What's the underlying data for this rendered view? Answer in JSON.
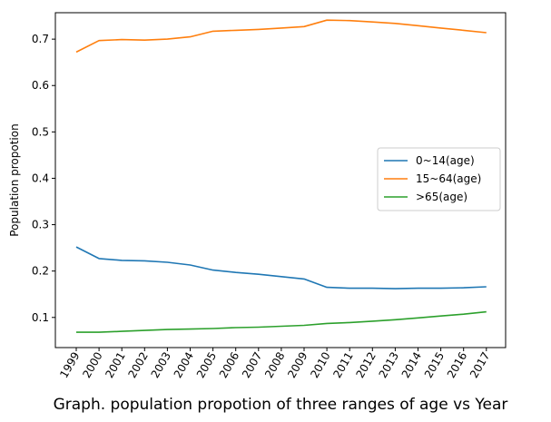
{
  "chart_data": {
    "type": "line",
    "title": "",
    "xlabel": "Graph. population propotion of three ranges of age vs Year",
    "ylabel": "Population propotion",
    "x": [
      "1999",
      "2000",
      "2001",
      "2002",
      "2003",
      "2004",
      "2005",
      "2006",
      "2007",
      "2008",
      "2009",
      "2010",
      "2011",
      "2012",
      "2013",
      "2014",
      "2015",
      "2016",
      "2017"
    ],
    "ylim": [
      0.035,
      0.757
    ],
    "yticks": [
      0.1,
      0.2,
      0.3,
      0.4,
      0.5,
      0.6,
      0.7
    ],
    "ytick_labels": [
      "0.1",
      "0.2",
      "0.3",
      "0.4",
      "0.5",
      "0.6",
      "0.7"
    ],
    "grid": false,
    "legend_position": "center-right",
    "series": [
      {
        "name": "0~14(age)",
        "color": "#1f77b4",
        "values": [
          0.252,
          0.227,
          0.223,
          0.222,
          0.219,
          0.213,
          0.202,
          0.197,
          0.193,
          0.188,
          0.183,
          0.165,
          0.163,
          0.163,
          0.162,
          0.163,
          0.163,
          0.164,
          0.166
        ]
      },
      {
        "name": "15~64(age)",
        "color": "#ff7f0e",
        "values": [
          0.672,
          0.697,
          0.699,
          0.698,
          0.7,
          0.705,
          0.717,
          0.719,
          0.721,
          0.724,
          0.727,
          0.741,
          0.74,
          0.737,
          0.734,
          0.729,
          0.724,
          0.719,
          0.714
        ]
      },
      {
        "name": ">65(age)",
        "color": "#2ca02c",
        "values": [
          0.068,
          0.068,
          0.07,
          0.072,
          0.074,
          0.075,
          0.076,
          0.078,
          0.079,
          0.081,
          0.083,
          0.087,
          0.089,
          0.092,
          0.095,
          0.099,
          0.103,
          0.107,
          0.112
        ]
      }
    ]
  }
}
